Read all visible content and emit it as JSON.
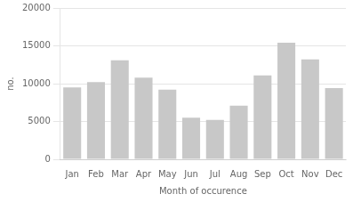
{
  "chart_data": {
    "type": "bar",
    "xlabel": "Month of occurence",
    "ylabel": "no.",
    "categories": [
      "Jan",
      "Feb",
      "Mar",
      "Apr",
      "May",
      "Jun",
      "Jul",
      "Aug",
      "Sep",
      "Oct",
      "Nov",
      "Dec"
    ],
    "values": [
      9500,
      10200,
      13100,
      10800,
      9200,
      5500,
      5200,
      7100,
      11100,
      15400,
      13200,
      9400
    ],
    "color": "#c8c8c8",
    "ylim": [
      0,
      20000
    ],
    "yticks": [
      0,
      5000,
      10000,
      15000,
      20000
    ],
    "grid": true
  }
}
